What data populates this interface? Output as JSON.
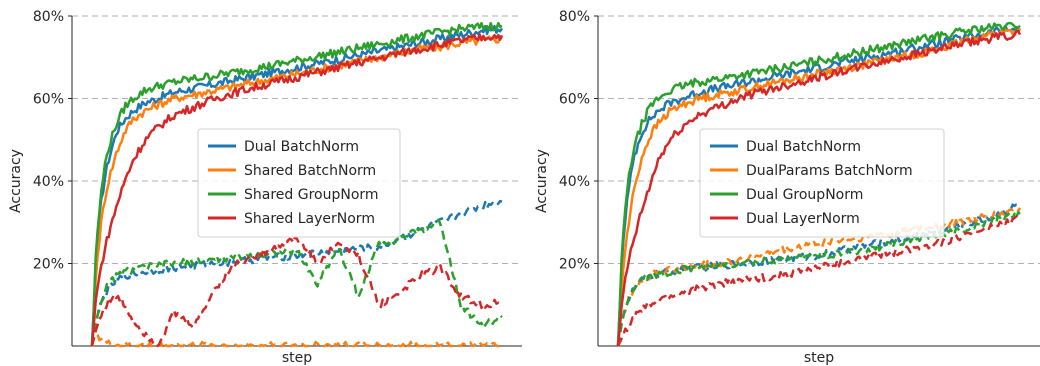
{
  "chart_data": [
    {
      "type": "line",
      "xlabel": "step",
      "ylabel": "Accuracy",
      "ylim": [
        0,
        80
      ],
      "yticks": [
        "20%",
        "40%",
        "60%",
        "80%"
      ],
      "grid": "horizontal dashed",
      "legend_position": "center",
      "x": [
        0,
        0.5,
        1,
        2,
        3,
        4,
        6,
        8,
        10,
        13,
        16,
        20,
        25,
        30,
        35,
        40,
        45,
        50,
        55,
        60,
        65,
        70,
        75,
        80,
        85,
        90,
        95,
        100
      ],
      "series": [
        {
          "name": "Dual BatchNorm",
          "color": "#1f77b4",
          "style": "solid",
          "values": [
            0,
            10,
            22,
            33,
            40,
            45,
            52,
            55,
            57,
            59,
            60,
            61.5,
            62.5,
            63.5,
            64.5,
            65.5,
            66.5,
            67.5,
            68.5,
            69.5,
            70.5,
            71.5,
            72.5,
            73.5,
            74.5,
            75.5,
            76.5,
            77
          ]
        },
        {
          "name": "Shared BatchNorm",
          "color": "#ff7f0e",
          "style": "solid",
          "values": [
            0,
            8,
            18,
            28,
            35,
            40,
            47,
            52,
            55,
            57,
            58.5,
            60,
            61,
            62,
            63,
            64,
            65,
            66,
            67,
            68,
            69,
            70,
            71,
            72,
            72.5,
            73.5,
            74,
            74.5
          ]
        },
        {
          "name": "Shared GroupNorm",
          "color": "#2ca02c",
          "style": "solid",
          "values": [
            0,
            11,
            24,
            35,
            43,
            48,
            54,
            58,
            60,
            62,
            63,
            64,
            64.8,
            65.6,
            66.4,
            67.3,
            68.2,
            69.2,
            70.2,
            71.2,
            72.2,
            73.2,
            74.2,
            75.2,
            76.1,
            76.9,
            77.4,
            77.6
          ]
        },
        {
          "name": "Shared LayerNorm",
          "color": "#d62728",
          "style": "solid",
          "values": [
            0,
            6,
            12,
            18,
            23,
            27,
            34,
            40,
            45,
            50,
            53,
            56,
            58,
            60,
            61.5,
            62.8,
            64,
            65.2,
            66.4,
            67.5,
            68.7,
            69.8,
            71,
            72,
            73,
            74,
            74.8,
            75.3
          ]
        },
        {
          "name": "",
          "color": "#1f77b4",
          "style": "dashed",
          "values": [
            0,
            3,
            6,
            10,
            12,
            14,
            16,
            17,
            17.5,
            18,
            18.5,
            19,
            19.5,
            20,
            20.5,
            21,
            21.5,
            22,
            22.5,
            23,
            23.5,
            24,
            26,
            28,
            30,
            32,
            34,
            35
          ]
        },
        {
          "name": "",
          "color": "#ff7f0e",
          "style": "dashed",
          "values": [
            0,
            2,
            3,
            2,
            1,
            0.5,
            0.2,
            0.1,
            0.1,
            0.1,
            0.1,
            0.1,
            0.1,
            0.1,
            0.1,
            0.1,
            0.1,
            0.1,
            0.1,
            0.1,
            0.1,
            0.1,
            0.1,
            0.1,
            0.1,
            0.1,
            0.1,
            0.1
          ]
        },
        {
          "name": "",
          "color": "#2ca02c",
          "style": "dashed",
          "values": [
            0,
            3,
            6,
            10,
            13,
            15,
            17,
            18,
            18.5,
            19,
            19.5,
            20,
            20.5,
            21,
            21.5,
            22,
            22.5,
            23,
            15,
            24,
            12,
            25,
            26,
            28,
            30,
            10,
            5,
            7
          ]
        },
        {
          "name": "",
          "color": "#d62728",
          "style": "dashed",
          "values": [
            0,
            2,
            4,
            7,
            9,
            11,
            12,
            10,
            6,
            3,
            0,
            8,
            5,
            14,
            20,
            22,
            24,
            26,
            20,
            25,
            22,
            10,
            13,
            17,
            19,
            12,
            10,
            10.5
          ]
        }
      ]
    },
    {
      "type": "line",
      "xlabel": "step",
      "ylabel": "Accuracy",
      "ylim": [
        0,
        80
      ],
      "yticks": [
        "20%",
        "40%",
        "60%",
        "80%"
      ],
      "grid": "horizontal dashed",
      "legend_position": "center",
      "x": [
        0,
        0.5,
        1,
        2,
        3,
        4,
        6,
        8,
        10,
        13,
        16,
        20,
        25,
        30,
        35,
        40,
        45,
        50,
        55,
        60,
        65,
        70,
        75,
        80,
        85,
        90,
        95,
        100
      ],
      "series": [
        {
          "name": "Dual BatchNorm",
          "color": "#1f77b4",
          "style": "solid",
          "values": [
            0,
            10,
            22,
            33,
            40,
            46,
            52,
            55,
            57,
            59,
            60,
            61.5,
            62.5,
            63.5,
            64.5,
            65.5,
            66.5,
            67.5,
            68.5,
            69.5,
            70.5,
            71.5,
            72.5,
            73.5,
            74.5,
            75.5,
            76.5,
            77
          ]
        },
        {
          "name": "DualParams BatchNorm",
          "color": "#ff7f0e",
          "style": "solid",
          "values": [
            0,
            7,
            16,
            25,
            32,
            38,
            46,
            51,
            54,
            57,
            58.5,
            60,
            61,
            62,
            63,
            64,
            65,
            66,
            67,
            68,
            69,
            70,
            71,
            72,
            73.5,
            75,
            76,
            76.5
          ]
        },
        {
          "name": "Dual GroupNorm",
          "color": "#2ca02c",
          "style": "solid",
          "values": [
            0,
            11,
            24,
            35,
            43,
            48,
            54,
            58,
            60,
            62,
            63,
            64,
            64.8,
            65.6,
            66.4,
            67.3,
            68.2,
            69.2,
            70.2,
            71.2,
            72.2,
            73.2,
            74.2,
            75.2,
            76.1,
            76.9,
            77.4,
            77.6
          ]
        },
        {
          "name": "Dual LayerNorm",
          "color": "#d62728",
          "style": "solid",
          "values": [
            0,
            5,
            11,
            17,
            22,
            26,
            33,
            39,
            45,
            50,
            53,
            56,
            58,
            60,
            61.5,
            62.8,
            64,
            65.2,
            66.4,
            67.5,
            68.7,
            69.8,
            71,
            72,
            73,
            74,
            75,
            75.5
          ]
        },
        {
          "name": "",
          "color": "#1f77b4",
          "style": "dashed",
          "values": [
            0,
            3,
            6,
            10,
            12,
            14,
            16,
            17,
            17.5,
            18,
            18.5,
            19,
            19.5,
            20,
            20.5,
            21,
            21.5,
            22,
            23,
            24,
            25,
            26,
            27,
            28,
            29,
            30.5,
            32,
            34.5
          ]
        },
        {
          "name": "",
          "color": "#ff7f0e",
          "style": "dashed",
          "values": [
            0,
            3,
            6,
            10,
            12,
            14,
            16,
            17,
            18,
            18.5,
            19,
            19.5,
            20,
            21,
            22,
            23,
            24,
            25,
            25.5,
            26,
            27,
            27.5,
            28.5,
            29,
            30,
            31,
            32,
            33.5
          ]
        },
        {
          "name": "",
          "color": "#2ca02c",
          "style": "dashed",
          "values": [
            0,
            3,
            6,
            10,
            12,
            14,
            16,
            17,
            17.5,
            18,
            18.5,
            19,
            19.5,
            20,
            20.5,
            21,
            21.5,
            22,
            22.5,
            23,
            24,
            25,
            26,
            27,
            28,
            29.5,
            31,
            32
          ]
        },
        {
          "name": "",
          "color": "#d62728",
          "style": "dashed",
          "values": [
            0,
            1,
            2,
            4,
            5,
            7,
            9,
            10,
            11,
            12,
            13,
            14,
            15,
            16,
            16.5,
            17,
            18,
            19,
            20,
            21,
            22,
            23,
            24,
            25,
            26.5,
            28,
            29.5,
            31
          ]
        }
      ]
    }
  ]
}
